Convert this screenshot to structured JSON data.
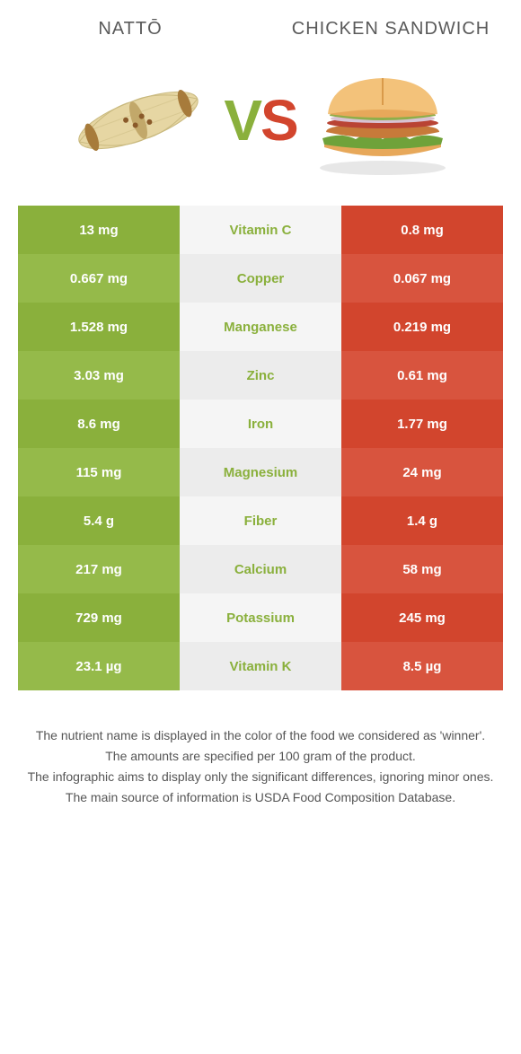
{
  "foods": {
    "left": {
      "name": "NATTŌ",
      "color": "#8ab03c"
    },
    "right": {
      "name": "CHICKEN SANDWICH",
      "color": "#d2452d"
    }
  },
  "vs_text": {
    "v": "V",
    "s": "S"
  },
  "palette": {
    "left_cell_bg_a": "#8ab03c",
    "left_cell_bg_b": "#95ba4a",
    "center_cell_bg_a": "#f5f5f5",
    "center_cell_bg_b": "#ececec",
    "right_cell_bg_a": "#d2452d",
    "right_cell_bg_b": "#d8543e",
    "winner_left": "#8ab03c",
    "winner_right": "#d2452d",
    "cell_text": "#ffffff",
    "footnote_text": "#555555"
  },
  "rows": [
    {
      "nutrient": "Vitamin C",
      "left": "13 mg",
      "right": "0.8 mg",
      "winner": "left"
    },
    {
      "nutrient": "Copper",
      "left": "0.667 mg",
      "right": "0.067 mg",
      "winner": "left"
    },
    {
      "nutrient": "Manganese",
      "left": "1.528 mg",
      "right": "0.219 mg",
      "winner": "left"
    },
    {
      "nutrient": "Zinc",
      "left": "3.03 mg",
      "right": "0.61 mg",
      "winner": "left"
    },
    {
      "nutrient": "Iron",
      "left": "8.6 mg",
      "right": "1.77 mg",
      "winner": "left"
    },
    {
      "nutrient": "Magnesium",
      "left": "115 mg",
      "right": "24 mg",
      "winner": "left"
    },
    {
      "nutrient": "Fiber",
      "left": "5.4 g",
      "right": "1.4 g",
      "winner": "left"
    },
    {
      "nutrient": "Calcium",
      "left": "217 mg",
      "right": "58 mg",
      "winner": "left"
    },
    {
      "nutrient": "Potassium",
      "left": "729 mg",
      "right": "245 mg",
      "winner": "left"
    },
    {
      "nutrient": "Vitamin K",
      "left": "23.1 µg",
      "right": "8.5 µg",
      "winner": "left"
    }
  ],
  "footnotes": [
    "The nutrient name is displayed in the color of the food we considered as 'winner'.",
    "The amounts are specified per 100 gram of the product.",
    "The infographic aims to display only the significant differences, ignoring minor ones.",
    "The main source of information is USDA Food Composition Database."
  ]
}
